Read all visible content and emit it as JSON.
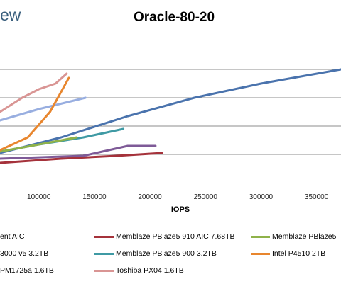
{
  "logo": "ew",
  "chart_data": {
    "type": "line",
    "title": "Oracle-80-20",
    "xlabel": "IOPS",
    "x_ticks": [
      "100000",
      "150000",
      "200000",
      "250000",
      "300000",
      "350000"
    ],
    "xlim": [
      65000,
      372000
    ],
    "ylim": [
      0,
      5
    ],
    "grid": true,
    "legend_position": "bottom",
    "series": [
      {
        "name": "",
        "color": "#4a73ad",
        "x": [
          65000,
          120000,
          180000,
          240000,
          300000,
          372000
        ],
        "y": [
          1.05,
          1.6,
          2.35,
          3.0,
          3.5,
          4.0
        ]
      },
      {
        "name": "Memblaze PBlaze5 900 3.2TB",
        "color": "#3f9aa4",
        "x": [
          65000,
          100000,
          140000,
          176000
        ],
        "y": [
          1.1,
          1.35,
          1.6,
          1.9
        ]
      },
      {
        "name": "Memblaze PBlaze5 910 AIC 7.68TB",
        "color": "#a5323b",
        "x": [
          65000,
          120000,
          170000,
          211000
        ],
        "y": [
          0.7,
          0.85,
          0.95,
          1.05
        ]
      },
      {
        "name": "",
        "color": "#7e5a97",
        "x": [
          65000,
          140000,
          180000,
          205000
        ],
        "y": [
          0.85,
          0.95,
          1.3,
          1.3
        ]
      },
      {
        "name": "Memblaze PBlaze5",
        "color": "#8fb24a",
        "x": [
          65000,
          100000,
          134000
        ],
        "y": [
          1.1,
          1.35,
          1.6
        ]
      },
      {
        "name": "",
        "color": "#98aee0",
        "x": [
          65000,
          100000,
          142000
        ],
        "y": [
          2.2,
          2.6,
          3.0
        ]
      },
      {
        "name": "Intel P4510 2TB",
        "color": "#e8862e",
        "x": [
          65000,
          90000,
          110000,
          127000
        ],
        "y": [
          1.15,
          1.6,
          2.5,
          3.7
        ]
      },
      {
        "name": "Toshiba PX04 1.6TB",
        "color": "#d99594",
        "x": [
          65000,
          85000,
          100000,
          115000,
          125000
        ],
        "y": [
          2.5,
          3.0,
          3.3,
          3.5,
          3.85
        ]
      }
    ]
  },
  "legend": [
    {
      "label": "ent AIC",
      "color": ""
    },
    {
      "label": "Memblaze PBlaze5 910 AIC 7.68TB",
      "color": "#a5323b"
    },
    {
      "label": "Memblaze PBlaze5",
      "color": "#8fb24a"
    },
    {
      "label": "3000 v5 3.2TB",
      "color": ""
    },
    {
      "label": "Memblaze PBlaze5 900 3.2TB",
      "color": "#3f9aa4"
    },
    {
      "label": "Intel P4510 2TB",
      "color": "#e8862e"
    },
    {
      "label": "PM1725a 1.6TB",
      "color": ""
    },
    {
      "label": "Toshiba PX04 1.6TB",
      "color": "#d99594"
    }
  ]
}
